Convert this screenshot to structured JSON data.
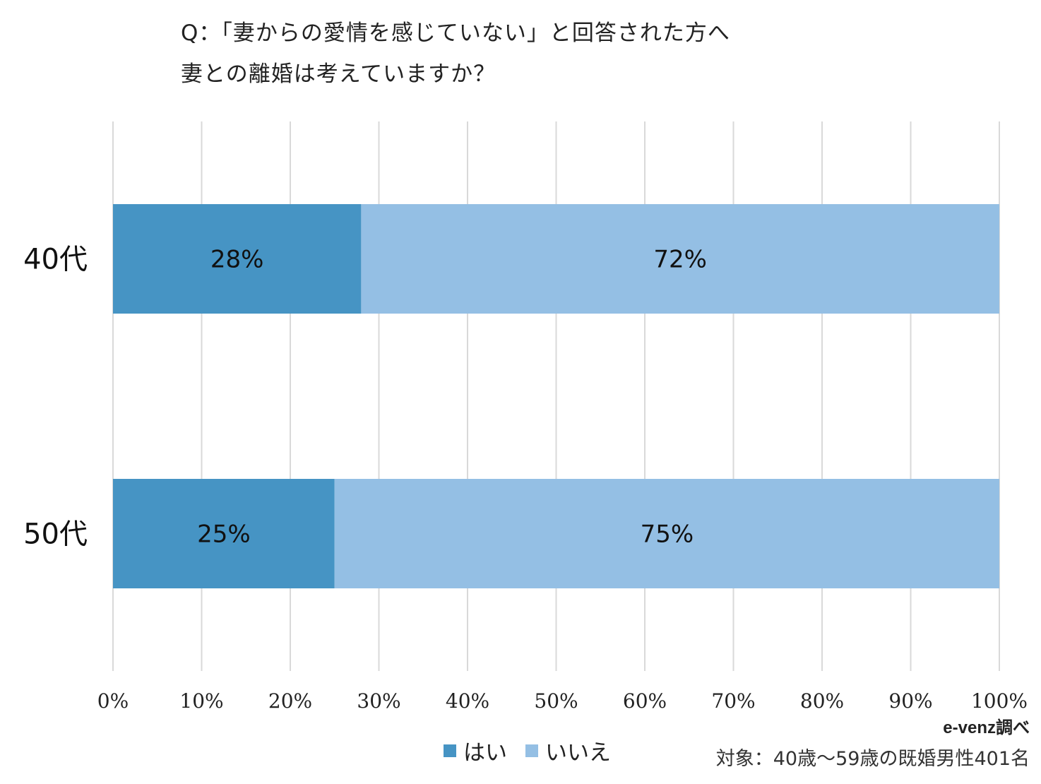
{
  "title": {
    "line1": "Q：「妻からの愛情を感じていない」と回答された方へ",
    "line2": "妻との離婚は考えていますか？"
  },
  "colors": {
    "hai": "#4694c4",
    "iie": "#94bfe4",
    "grid": "#d9d9d9"
  },
  "chart_data": {
    "type": "bar",
    "orientation": "horizontal",
    "stacked": true,
    "categories": [
      "40代",
      "50代"
    ],
    "series": [
      {
        "name": "はい",
        "values": [
          28,
          25
        ],
        "labels": [
          "28%",
          "25%"
        ],
        "color": "#4694c4"
      },
      {
        "name": "いいえ",
        "values": [
          72,
          75
        ],
        "labels": [
          "72%",
          "75%"
        ],
        "color": "#94bfe4"
      }
    ],
    "xlim": [
      0,
      100
    ],
    "xticks": [
      "0%",
      "10%",
      "20%",
      "30%",
      "40%",
      "50%",
      "60%",
      "70%",
      "80%",
      "90%",
      "100%"
    ],
    "grid": true,
    "legend": "bottom"
  },
  "legend": {
    "items": [
      "はい",
      "いいえ"
    ]
  },
  "source": {
    "label": "e-venz調べ",
    "target": "対象：40歳〜59歳の既婚男性401名"
  }
}
